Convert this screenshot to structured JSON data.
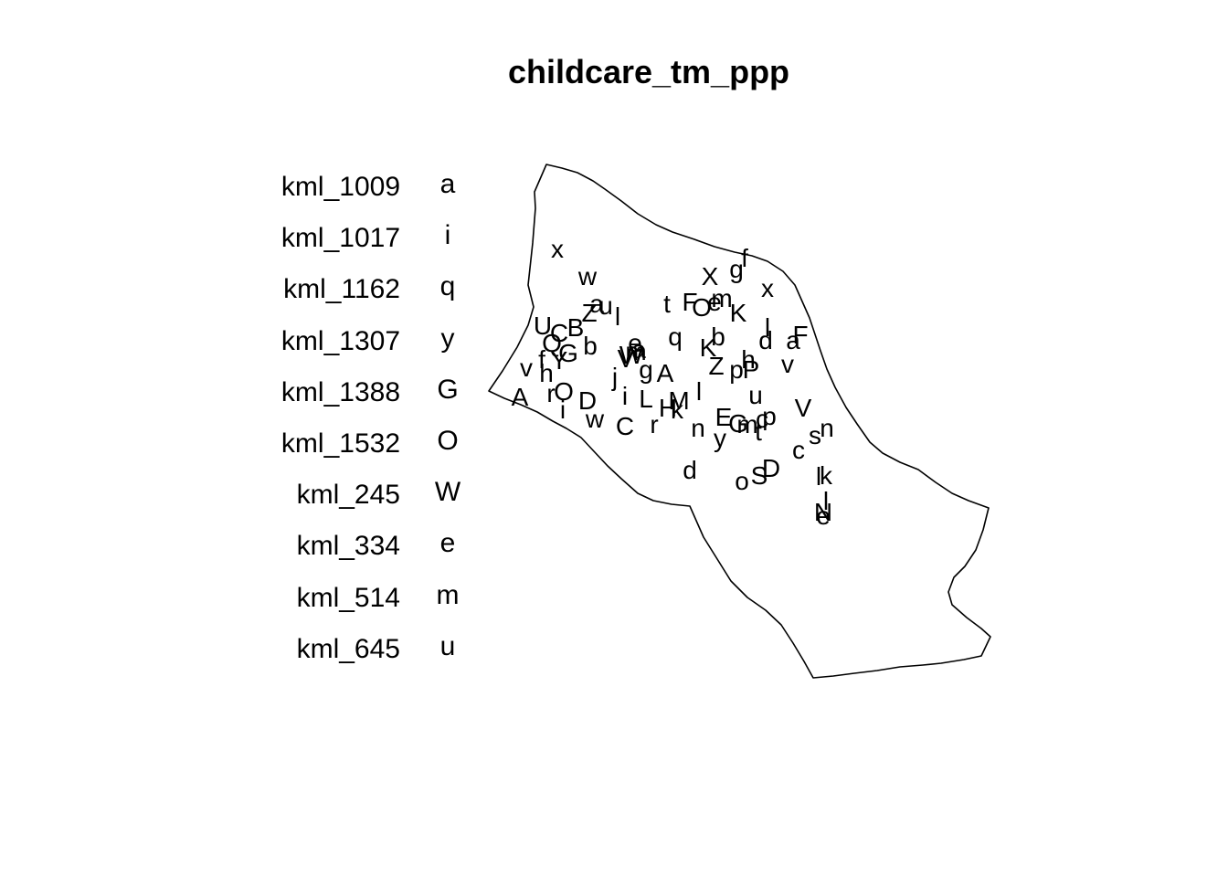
{
  "title": "childcare_tm_ppp",
  "legend": {
    "items": [
      {
        "name": "kml_1009",
        "symbol": "a"
      },
      {
        "name": "kml_1017",
        "symbol": "i"
      },
      {
        "name": "kml_1162",
        "symbol": "q"
      },
      {
        "name": "kml_1307",
        "symbol": "y"
      },
      {
        "name": "kml_1388",
        "symbol": "G"
      },
      {
        "name": "kml_1532",
        "symbol": "O"
      },
      {
        "name": "kml_245",
        "symbol": "W"
      },
      {
        "name": "kml_334",
        "symbol": "e"
      },
      {
        "name": "kml_514",
        "symbol": "m"
      },
      {
        "name": "kml_645",
        "symbol": "u"
      }
    ]
  },
  "map": {
    "boundary_color": "#000000",
    "background": "#ffffff"
  }
}
